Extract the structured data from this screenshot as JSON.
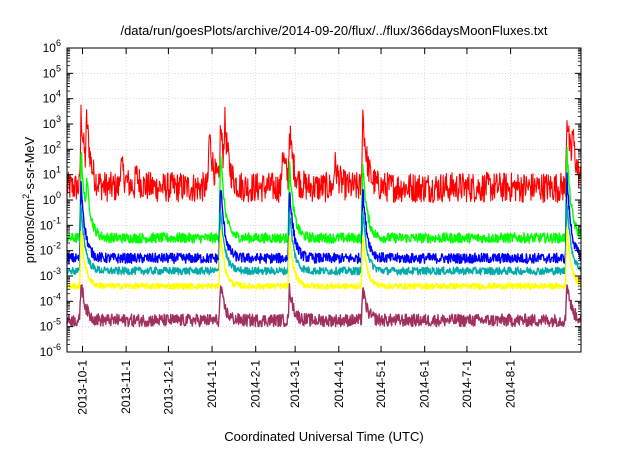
{
  "chart_data": {
    "type": "line",
    "title": "/data/run/goesPlots/archive/2014-09-20/flux/../flux/366daysMoonFluxes.txt",
    "xlabel": "Coordinated Universal Time (UTC)",
    "ylabel": {
      "pre": "protons/cm",
      "sup": "2",
      "post": "-s-sr-MeV"
    },
    "yscale": "log",
    "ylim_exp": [
      -6,
      6
    ],
    "y_ticks": [
      {
        "base": "10",
        "exp": "6"
      },
      {
        "base": "10",
        "exp": "5"
      },
      {
        "base": "10",
        "exp": "4"
      },
      {
        "base": "10",
        "exp": "3"
      },
      {
        "base": "10",
        "exp": "2"
      },
      {
        "base": "10",
        "exp": "1"
      },
      {
        "base": "10",
        "exp": "0"
      },
      {
        "base": "10",
        "exp": "-1"
      },
      {
        "base": "10",
        "exp": "-2"
      },
      {
        "base": "10",
        "exp": "-3"
      },
      {
        "base": "10",
        "exp": "-4"
      },
      {
        "base": "10",
        "exp": "-5"
      },
      {
        "base": "10",
        "exp": "-6"
      }
    ],
    "xlim": [
      "2013-09-20",
      "2014-09-20"
    ],
    "x_ticks": [
      "2013-10-1",
      "2013-11-1",
      "2013-12-1",
      "2014-1-1",
      "2014-2-1",
      "2014-3-1",
      "2014-4-1",
      "2014-5-1",
      "2014-6-1",
      "2014-7-1",
      "2014-8-1"
    ],
    "grid": true,
    "legend": "none",
    "series": [
      {
        "color": "#ff0000",
        "baseline": 0.5,
        "noise": 0.6,
        "events": [
          [
            "2013-09-30",
            3.0
          ],
          [
            "2013-10-04",
            2.0
          ],
          [
            "2013-10-28",
            1.0
          ],
          [
            "2013-11-08",
            0.5
          ],
          [
            "2013-12-30",
            2.2
          ],
          [
            "2014-01-07",
            2.3
          ],
          [
            "2014-01-10",
            1.8
          ],
          [
            "2014-02-20",
            1.5
          ],
          [
            "2014-02-25",
            2.0
          ],
          [
            "2014-03-29",
            1.0
          ],
          [
            "2014-04-18",
            3.0
          ],
          [
            "2014-09-10",
            3.0
          ],
          [
            "2014-09-14",
            1.5
          ]
        ]
      },
      {
        "color": "#00ff00",
        "baseline": -1.5,
        "noise": 0.2,
        "events": [
          [
            "2013-09-30",
            3.5
          ],
          [
            "2013-10-04",
            1.5
          ],
          [
            "2014-01-07",
            3.5
          ],
          [
            "2014-02-25",
            3.0
          ],
          [
            "2014-04-18",
            3.0
          ],
          [
            "2014-09-10",
            3.5
          ]
        ]
      },
      {
        "color": "#0000ff",
        "baseline": -2.3,
        "noise": 0.2,
        "events": [
          [
            "2013-09-30",
            3.0
          ],
          [
            "2014-01-07",
            3.0
          ],
          [
            "2014-02-25",
            2.8
          ],
          [
            "2014-04-18",
            2.8
          ],
          [
            "2014-09-10",
            3.3
          ]
        ]
      },
      {
        "color": "#00aaaa",
        "baseline": -2.8,
        "noise": 0.15,
        "events": [
          [
            "2013-09-30",
            2.6
          ],
          [
            "2014-01-07",
            2.6
          ],
          [
            "2014-02-25",
            2.4
          ],
          [
            "2014-04-18",
            2.4
          ],
          [
            "2014-09-10",
            2.8
          ]
        ]
      },
      {
        "color": "#ffff00",
        "baseline": -3.4,
        "noise": 0.12,
        "events": [
          [
            "2013-09-30",
            2.2
          ],
          [
            "2014-01-07",
            2.2
          ],
          [
            "2014-02-25",
            2.0
          ],
          [
            "2014-04-18",
            2.0
          ],
          [
            "2014-09-10",
            2.4
          ]
        ]
      },
      {
        "color": "#a03060",
        "baseline": -4.75,
        "noise": 0.25,
        "events": [
          [
            "2013-09-30",
            1.6
          ],
          [
            "2014-01-07",
            1.4
          ],
          [
            "2014-02-25",
            1.3
          ],
          [
            "2014-04-18",
            1.3
          ],
          [
            "2014-09-10",
            1.6
          ]
        ]
      }
    ]
  }
}
